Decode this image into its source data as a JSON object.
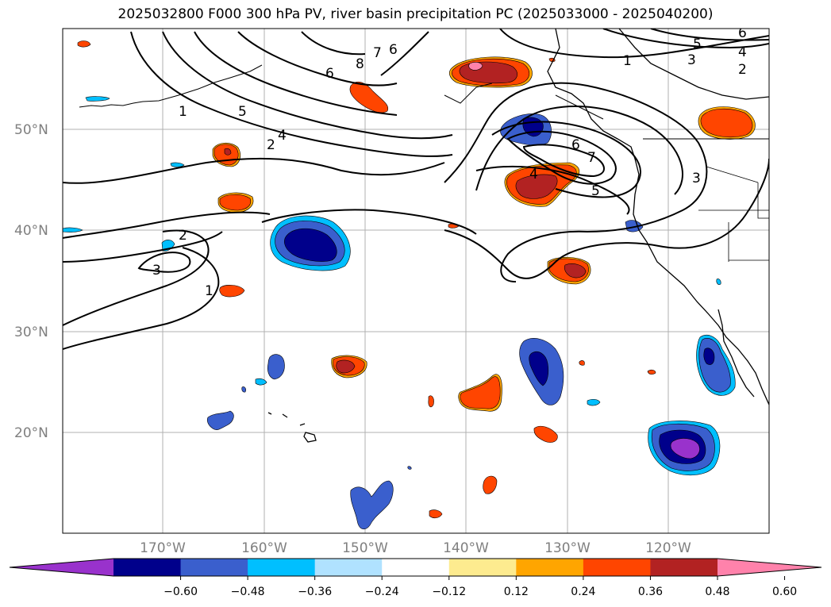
{
  "title": "2025032800 F000 300 hPa PV, river basin precipitation PC (2025033000 - 2025040200)",
  "map": {
    "lat_labels": [
      "50°N",
      "40°N",
      "30°N",
      "20°N"
    ],
    "lon_labels": [
      "170°W",
      "160°W",
      "150°W",
      "140°W",
      "130°W",
      "120°W"
    ],
    "extent": {
      "lon_min": -180,
      "lon_max": -110,
      "lat_min": 10,
      "lat_max": 60
    }
  },
  "contour_labels": [
    "1",
    "2",
    "3",
    "4",
    "5",
    "6",
    "7",
    "8"
  ],
  "colorbar": {
    "tick_labels": [
      "−0.60",
      "−0.48",
      "−0.36",
      "−0.24",
      "−0.12",
      "0.12",
      "0.24",
      "0.36",
      "0.48",
      "0.60"
    ],
    "colors": [
      "#9932cc",
      "#00008b",
      "#3a5fcd",
      "#00bfff",
      "#b0e2ff",
      "#ffffff",
      "#fdeb8f",
      "#ffa500",
      "#ff4500",
      "#b22222",
      "#ff82ab"
    ]
  }
}
